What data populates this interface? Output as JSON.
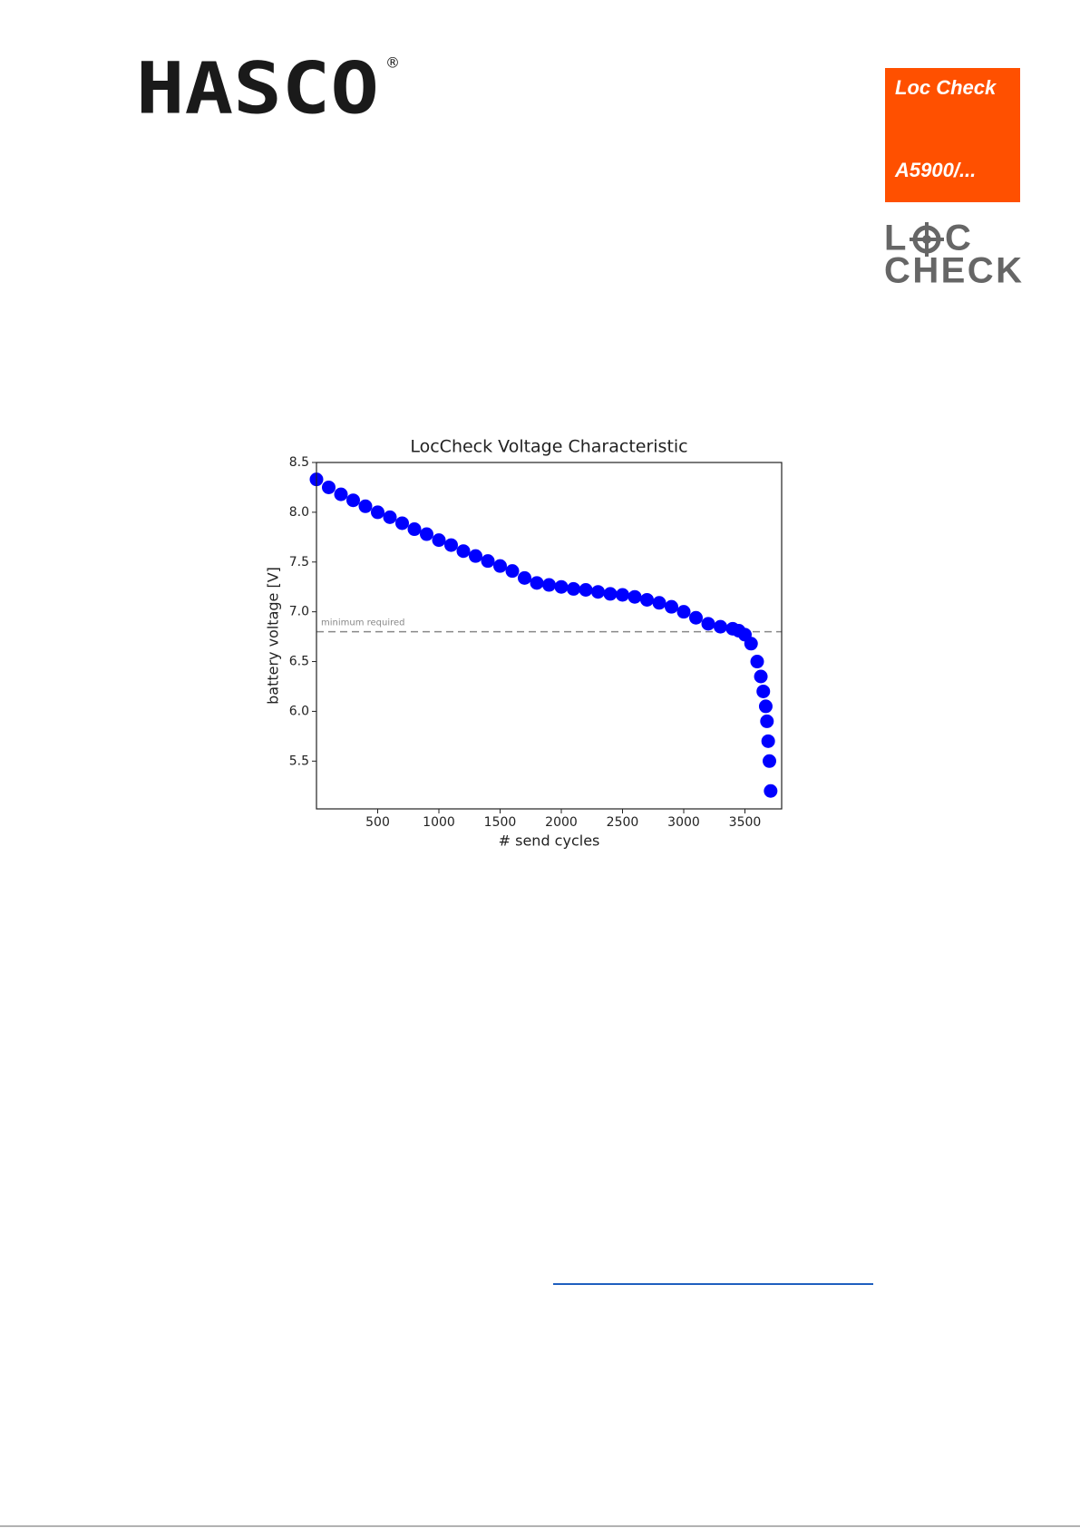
{
  "header": {
    "logo": "HASCO",
    "registered": "®",
    "badge": {
      "line1": "Loc Check",
      "line2": "A5900/..."
    },
    "loccheck_logo": {
      "left": "L",
      "right": "C",
      "bottom": "CHECK"
    }
  },
  "chart_data": {
    "type": "scatter",
    "title": "LocCheck Voltage Characteristic",
    "x_label": "# send cycles",
    "y_label": "battery voltage [V]",
    "x": [
      0,
      100,
      200,
      300,
      400,
      500,
      600,
      700,
      800,
      900,
      1000,
      1100,
      1200,
      1300,
      1400,
      1500,
      1600,
      1700,
      1800,
      1900,
      2000,
      2100,
      2200,
      2300,
      2400,
      2500,
      2600,
      2700,
      2800,
      2900,
      3000,
      3100,
      3200,
      3300,
      3400,
      3450,
      3500,
      3550,
      3600,
      3630,
      3650,
      3670,
      3680,
      3690,
      3700,
      3710
    ],
    "series": [
      {
        "name": "battery voltage",
        "color": "#0000ff",
        "values": [
          8.33,
          8.25,
          8.18,
          8.12,
          8.06,
          8.0,
          7.95,
          7.89,
          7.83,
          7.78,
          7.72,
          7.67,
          7.61,
          7.56,
          7.51,
          7.46,
          7.41,
          7.34,
          7.29,
          7.27,
          7.25,
          7.23,
          7.22,
          7.2,
          7.18,
          7.17,
          7.15,
          7.12,
          7.09,
          7.05,
          7.0,
          6.94,
          6.88,
          6.85,
          6.83,
          6.81,
          6.77,
          6.68,
          6.5,
          6.35,
          6.2,
          6.05,
          5.9,
          5.7,
          5.5,
          5.2
        ]
      }
    ],
    "threshold": {
      "value": 6.8,
      "label": "minimum required",
      "color": "#888888"
    },
    "xlim": [
      0,
      3800
    ],
    "ylim": [
      5.02,
      8.5
    ],
    "xticks": [
      500,
      1000,
      1500,
      2000,
      2500,
      3000,
      3500
    ],
    "yticks": [
      5.5,
      {
        "value": 6,
        "label": "6.0"
      },
      6.5,
      {
        "value": 7,
        "label": "7.0"
      },
      7.5,
      {
        "value": 8,
        "label": "8.0"
      },
      8.5
    ],
    "grid": false
  }
}
